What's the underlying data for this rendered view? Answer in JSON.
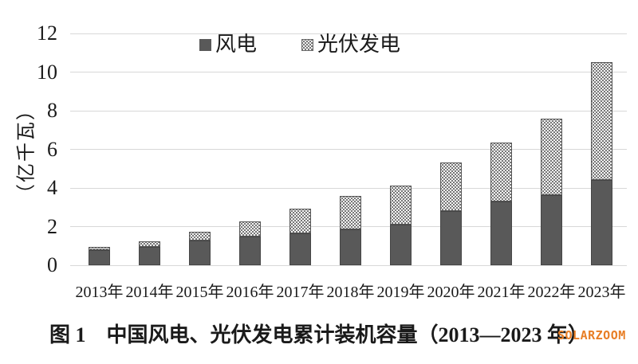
{
  "watermark": "SOLARZOOM",
  "colors": {
    "wind_fill": "#595959",
    "solar_dot": "#777777",
    "gridline": "#d8d8d8",
    "watermark_orange": "#E87E25"
  },
  "chart_data": {
    "type": "bar",
    "stacked": true,
    "title": "图 1　中国风电、光伏发电累计装机容量（2013—2023 年）",
    "ylabel": "（亿千瓦）",
    "xlabel": "",
    "categories": [
      "2013年",
      "2014年",
      "2015年",
      "2016年",
      "2017年",
      "2018年",
      "2019年",
      "2020年",
      "2021年",
      "2022年",
      "2023年"
    ],
    "series": [
      {
        "name": "风电",
        "values": [
          0.77,
          0.96,
          1.29,
          1.49,
          1.64,
          1.84,
          2.1,
          2.81,
          3.28,
          3.65,
          4.41
        ]
      },
      {
        "name": "光伏发电",
        "values": [
          0.19,
          0.28,
          0.43,
          0.77,
          1.3,
          1.74,
          2.04,
          2.53,
          3.06,
          3.93,
          6.09
        ]
      }
    ],
    "totals": [
      0.96,
      1.24,
      1.72,
      2.26,
      2.94,
      3.58,
      4.14,
      5.34,
      6.34,
      7.58,
      10.5
    ],
    "ylim": [
      0,
      12
    ],
    "yticks": [
      0,
      2,
      4,
      6,
      8,
      10,
      12
    ],
    "grid": "horizontal",
    "legend_position": "top-center"
  }
}
